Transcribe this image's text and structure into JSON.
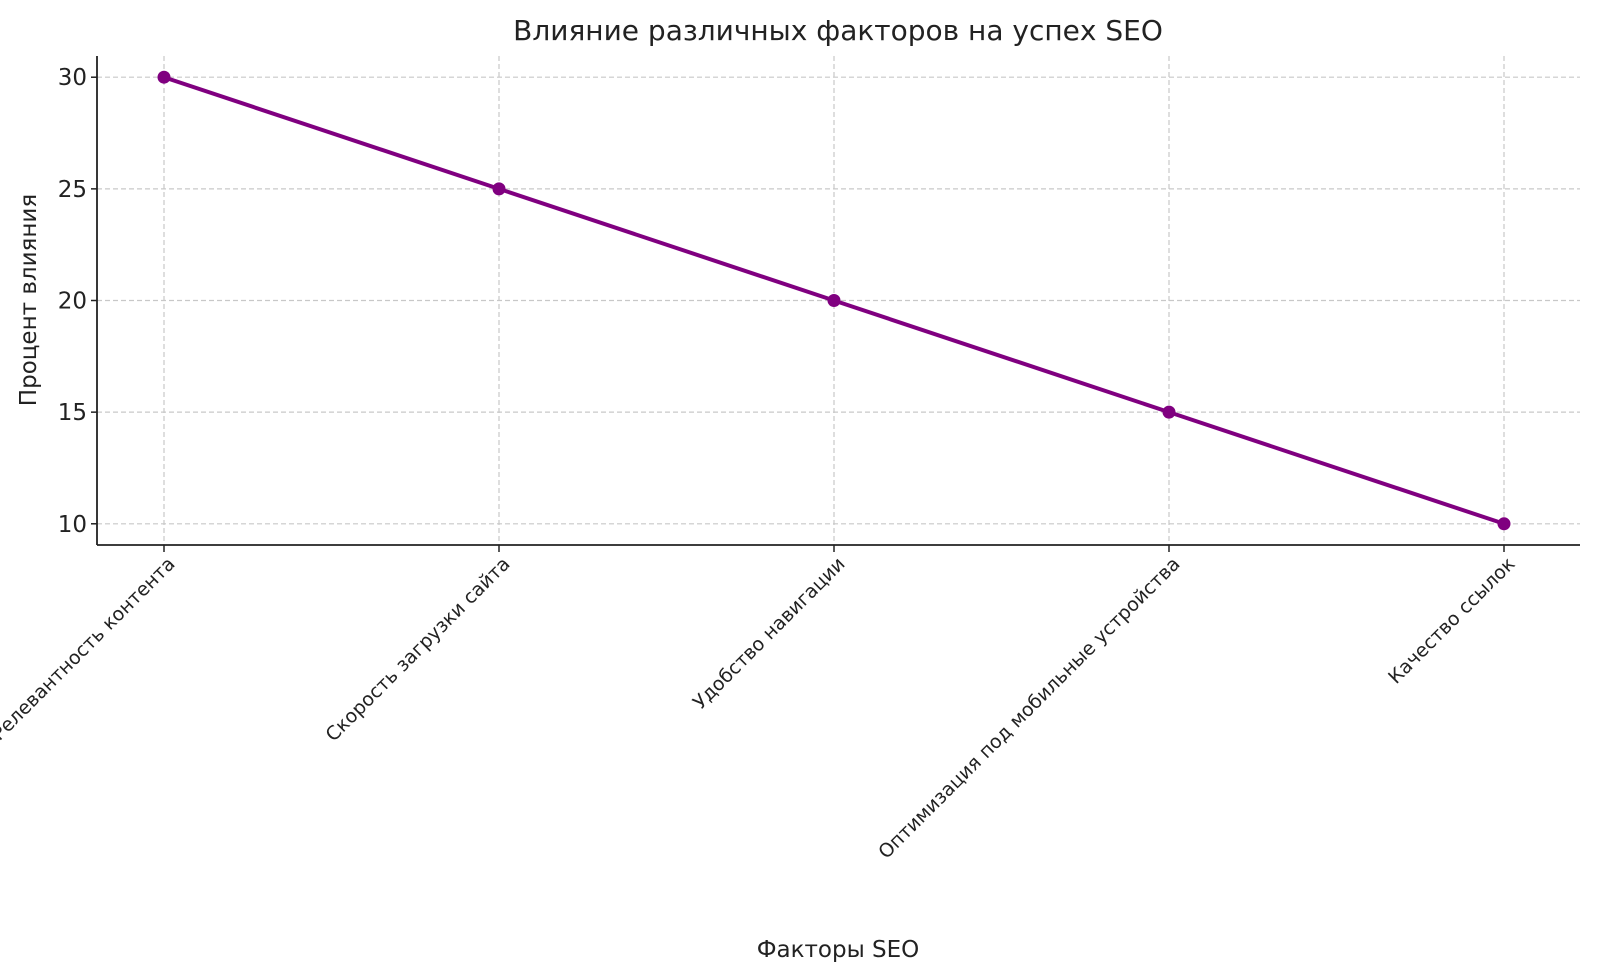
{
  "chart_data": {
    "type": "line",
    "title": "Влияние различных факторов на успех SEO",
    "xlabel": "Факторы SEO",
    "ylabel": "Процент влияния",
    "categories": [
      "Релевантность контента",
      "Скорость загрузки сайта",
      "Удобство навигации",
      "Оптимизация под мобильные устройства",
      "Качество ссылок"
    ],
    "series": [
      {
        "values": [
          30,
          25,
          20,
          15,
          10
        ],
        "color": "#800080",
        "marker": "circle"
      }
    ],
    "yticks": [
      10,
      15,
      20,
      25,
      30
    ],
    "ylim": [
      9.05,
      30.95
    ],
    "grid": true,
    "grid_style": "dashed"
  }
}
